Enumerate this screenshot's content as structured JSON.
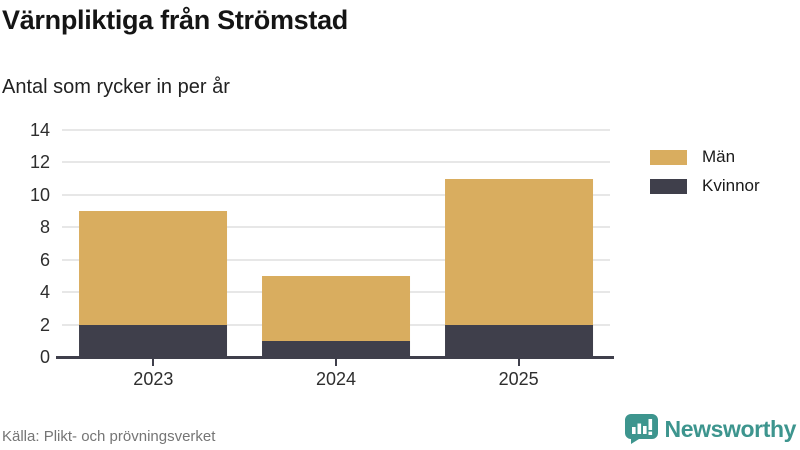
{
  "header": {
    "title": "Värnpliktiga från Strömstad",
    "subtitle": "Antal som rycker in per år"
  },
  "chart_data": {
    "type": "bar",
    "stacked": true,
    "title": "Värnpliktiga från Strömstad",
    "subtitle": "Antal som rycker in per år",
    "categories": [
      "2023",
      "2024",
      "2025"
    ],
    "series": [
      {
        "name": "Män",
        "values": [
          7,
          4,
          9
        ],
        "color": "#d9ad5f"
      },
      {
        "name": "Kvinnor",
        "values": [
          2,
          1,
          2
        ],
        "color": "#3f3f4b"
      }
    ],
    "totals": [
      9,
      5,
      11
    ],
    "stack_order_bottom_to_top": [
      "Kvinnor",
      "Män"
    ],
    "xlabel": "",
    "ylabel": "",
    "ylim": [
      0,
      14
    ],
    "yticks": [
      0,
      2,
      4,
      6,
      8,
      10,
      12,
      14
    ],
    "grid": true,
    "legend_position": "right"
  },
  "footer": {
    "source": "Källa: Plikt- och prövningsverket",
    "brand": "Newsworthy"
  },
  "colors": {
    "men": "#d9ad5f",
    "women": "#3f3f4b",
    "gridline": "#e7e7e7",
    "axis": "#3f3f4b",
    "text": "#1a1a1a",
    "muted_text": "#757575",
    "brand_teal": "#3d958e"
  }
}
